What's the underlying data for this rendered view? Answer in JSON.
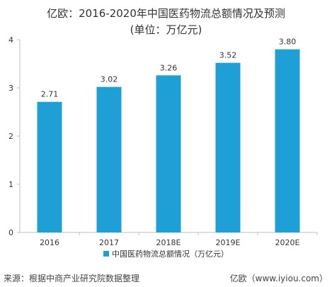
{
  "title": {
    "line1": "亿欧：2016-2020年中国医药物流总额情况及预测",
    "line2": "(单位：万亿元)"
  },
  "footer": {
    "source": "来源：根据中商产业研究院数据整理",
    "credit": "亿欧（www.iyiou.com）"
  },
  "chart_data": {
    "type": "bar",
    "categories": [
      "2016",
      "2017",
      "2018E",
      "2019E",
      "2020E"
    ],
    "series": [
      {
        "name": "中国医药物流总额情况（万亿元）",
        "values": [
          2.71,
          3.02,
          3.26,
          3.52,
          3.8
        ],
        "labels": [
          "2.71",
          "3.02",
          "3.26",
          "3.52",
          "3.80"
        ]
      }
    ],
    "ylim": [
      0,
      4
    ],
    "yticks": [
      "0",
      "1",
      "2",
      "3",
      "4"
    ],
    "grid": false,
    "legend": "bottom-center",
    "colors": {
      "bar": "#1e9fd6",
      "axis": "#bfbfbf"
    }
  }
}
